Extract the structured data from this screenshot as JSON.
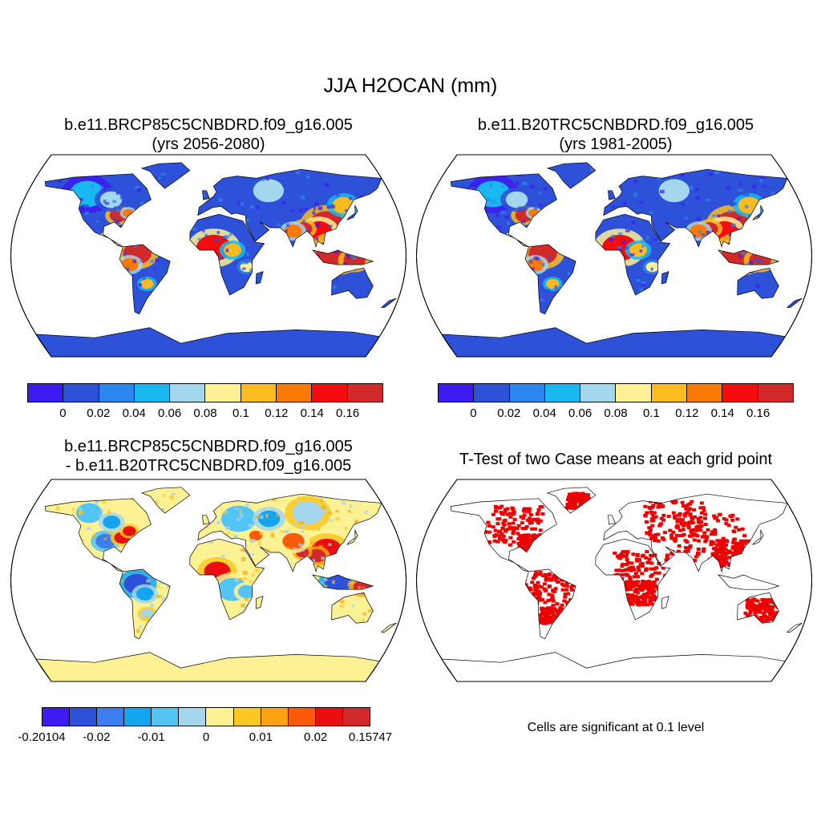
{
  "figure": {
    "title": "JJA H2OCAN (mm)",
    "colors": {
      "ocean": "#ffffff",
      "map_outline": "#000000",
      "significant_cell": "#ee0000"
    }
  },
  "panels": [
    {
      "id": "future",
      "title_line1": "b.e11.BRCP85C5CNBDRD.f09_g16.005",
      "title_line2": "(yrs 2056-2080)",
      "projection": "Robinson",
      "colorbar": {
        "colors": [
          "#3e1bf0",
          "#2d51d9",
          "#2b87ee",
          "#19b8f0",
          "#a4d6ee",
          "#fcf294",
          "#fcbc21",
          "#fb7a06",
          "#f50c0c",
          "#d22a2a"
        ],
        "labels": [
          "0",
          "0.02",
          "0.04",
          "0.06",
          "0.08",
          "0.1",
          "0.12",
          "0.14",
          "0.16"
        ]
      }
    },
    {
      "id": "historical",
      "title_line1": "b.e11.B20TRC5CNBDRD.f09_g16.005",
      "title_line2": "(yrs 1981-2005)",
      "projection": "Robinson",
      "colorbar": {
        "colors": [
          "#3e1bf0",
          "#2d51d9",
          "#2b87ee",
          "#19b8f0",
          "#a4d6ee",
          "#fcf294",
          "#fcbc21",
          "#fb7a06",
          "#f50c0c",
          "#d22a2a"
        ],
        "labels": [
          "0",
          "0.02",
          "0.04",
          "0.06",
          "0.08",
          "0.1",
          "0.12",
          "0.14",
          "0.16"
        ]
      }
    },
    {
      "id": "difference",
      "title_line1": "b.e11.BRCP85C5CNBDRD.f09_g16.005",
      "title_line2": "- b.e11.B20TRC5CNBDRD.f09_g16.005",
      "projection": "Robinson",
      "colorbar": {
        "colors": [
          "#3e1bf0",
          "#2d51d9",
          "#3c7df0",
          "#14a4f0",
          "#54c4f5",
          "#a4d6ee",
          "#fcf294",
          "#fcc824",
          "#fba212",
          "#fb5a0a",
          "#ea0f0f",
          "#d22a2a"
        ],
        "labels": [
          "-0.20104",
          "-0.02",
          "-0.01",
          "0",
          "0.01",
          "0.02",
          "0.15747"
        ],
        "label_box_index": [
          0,
          2,
          4,
          6,
          8,
          10,
          12
        ]
      }
    },
    {
      "id": "ttest",
      "title": "T-Test of two Case means at each grid point",
      "projection": "Robinson",
      "note": "Cells are significant at 0.1 level"
    }
  ]
}
